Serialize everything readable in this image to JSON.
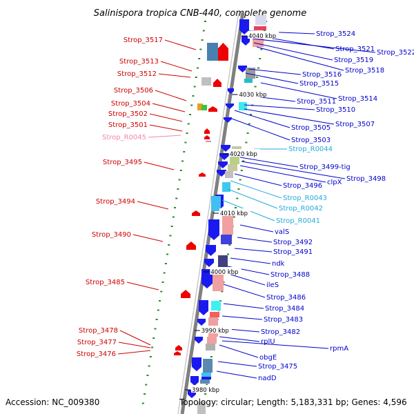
{
  "title": "Salinispora tropica CNB-440, complete genome",
  "accession": "Accession: NC_009380",
  "topology": "Topology: circular; Length: 5,183,331 bp; Genes: 4,596",
  "colors": {
    "left_label": "#cc0000",
    "left_label_pseudo": "#ee88aa",
    "right_label": "#0000cc",
    "right_label_rna": "#22aadd",
    "axis": "#808080",
    "tick": "#228b22",
    "forward_arrow": "#ee0000",
    "reverse_arrow": "#1a1aee"
  },
  "scale_labels": [
    "4040 kbp",
    "4030 kbp",
    "4020 kbp",
    "4010 kbp",
    "4000 kbp",
    "3990 kbp",
    "3980 kbp"
  ],
  "left_labels": [
    {
      "text": "Strop_3517",
      "kind": "gene"
    },
    {
      "text": "Strop_3513",
      "kind": "gene"
    },
    {
      "text": "Strop_3512",
      "kind": "gene"
    },
    {
      "text": "Strop_3506",
      "kind": "gene"
    },
    {
      "text": "Strop_3504",
      "kind": "gene"
    },
    {
      "text": "Strop_3502",
      "kind": "gene"
    },
    {
      "text": "Strop_3501",
      "kind": "gene"
    },
    {
      "text": "Strop_R0045",
      "kind": "pseudo"
    },
    {
      "text": "Strop_3495",
      "kind": "gene"
    },
    {
      "text": "Strop_3494",
      "kind": "gene"
    },
    {
      "text": "Strop_3490",
      "kind": "gene"
    },
    {
      "text": "Strop_3485",
      "kind": "gene"
    },
    {
      "text": "Strop_3478",
      "kind": "gene"
    },
    {
      "text": "Strop_3477",
      "kind": "gene"
    },
    {
      "text": "Strop_3476",
      "kind": "gene"
    }
  ],
  "right_labels": [
    {
      "text": "Strop_3524",
      "kind": "gene"
    },
    {
      "text": "Strop_3521",
      "kind": "gene"
    },
    {
      "text": "Strop_3522",
      "kind": "gene"
    },
    {
      "text": "Strop_3519",
      "kind": "gene"
    },
    {
      "text": "Strop_3518",
      "kind": "gene"
    },
    {
      "text": "Strop_3516",
      "kind": "gene"
    },
    {
      "text": "Strop_3515",
      "kind": "gene"
    },
    {
      "text": "Strop_3514",
      "kind": "gene"
    },
    {
      "text": "Strop_3511",
      "kind": "gene"
    },
    {
      "text": "Strop_3510",
      "kind": "gene"
    },
    {
      "text": "Strop_3507",
      "kind": "gene"
    },
    {
      "text": "Strop_3505",
      "kind": "gene"
    },
    {
      "text": "Strop_3503",
      "kind": "gene"
    },
    {
      "text": "Strop_R0044",
      "kind": "rna"
    },
    {
      "text": "Strop_3499-tig",
      "kind": "gene"
    },
    {
      "text": "Strop_3498",
      "kind": "gene"
    },
    {
      "text": "clpX",
      "kind": "gene"
    },
    {
      "text": "Strop_3496",
      "kind": "gene"
    },
    {
      "text": "Strop_R0043",
      "kind": "rna"
    },
    {
      "text": "Strop_R0042",
      "kind": "rna"
    },
    {
      "text": "Strop_R0041",
      "kind": "rna"
    },
    {
      "text": "valS",
      "kind": "gene"
    },
    {
      "text": "Strop_3492",
      "kind": "gene"
    },
    {
      "text": "Strop_3491",
      "kind": "gene"
    },
    {
      "text": "ndk",
      "kind": "gene"
    },
    {
      "text": "Strop_3488",
      "kind": "gene"
    },
    {
      "text": "ileS",
      "kind": "gene"
    },
    {
      "text": "Strop_3486",
      "kind": "gene"
    },
    {
      "text": "Strop_3484",
      "kind": "gene"
    },
    {
      "text": "Strop_3483",
      "kind": "gene"
    },
    {
      "text": "Strop_3482",
      "kind": "gene"
    },
    {
      "text": "rplU",
      "kind": "gene"
    },
    {
      "text": "rpmA",
      "kind": "gene"
    },
    {
      "text": "obgE",
      "kind": "gene"
    },
    {
      "text": "Strop_3475",
      "kind": "gene"
    },
    {
      "text": "nadD",
      "kind": "gene"
    }
  ]
}
